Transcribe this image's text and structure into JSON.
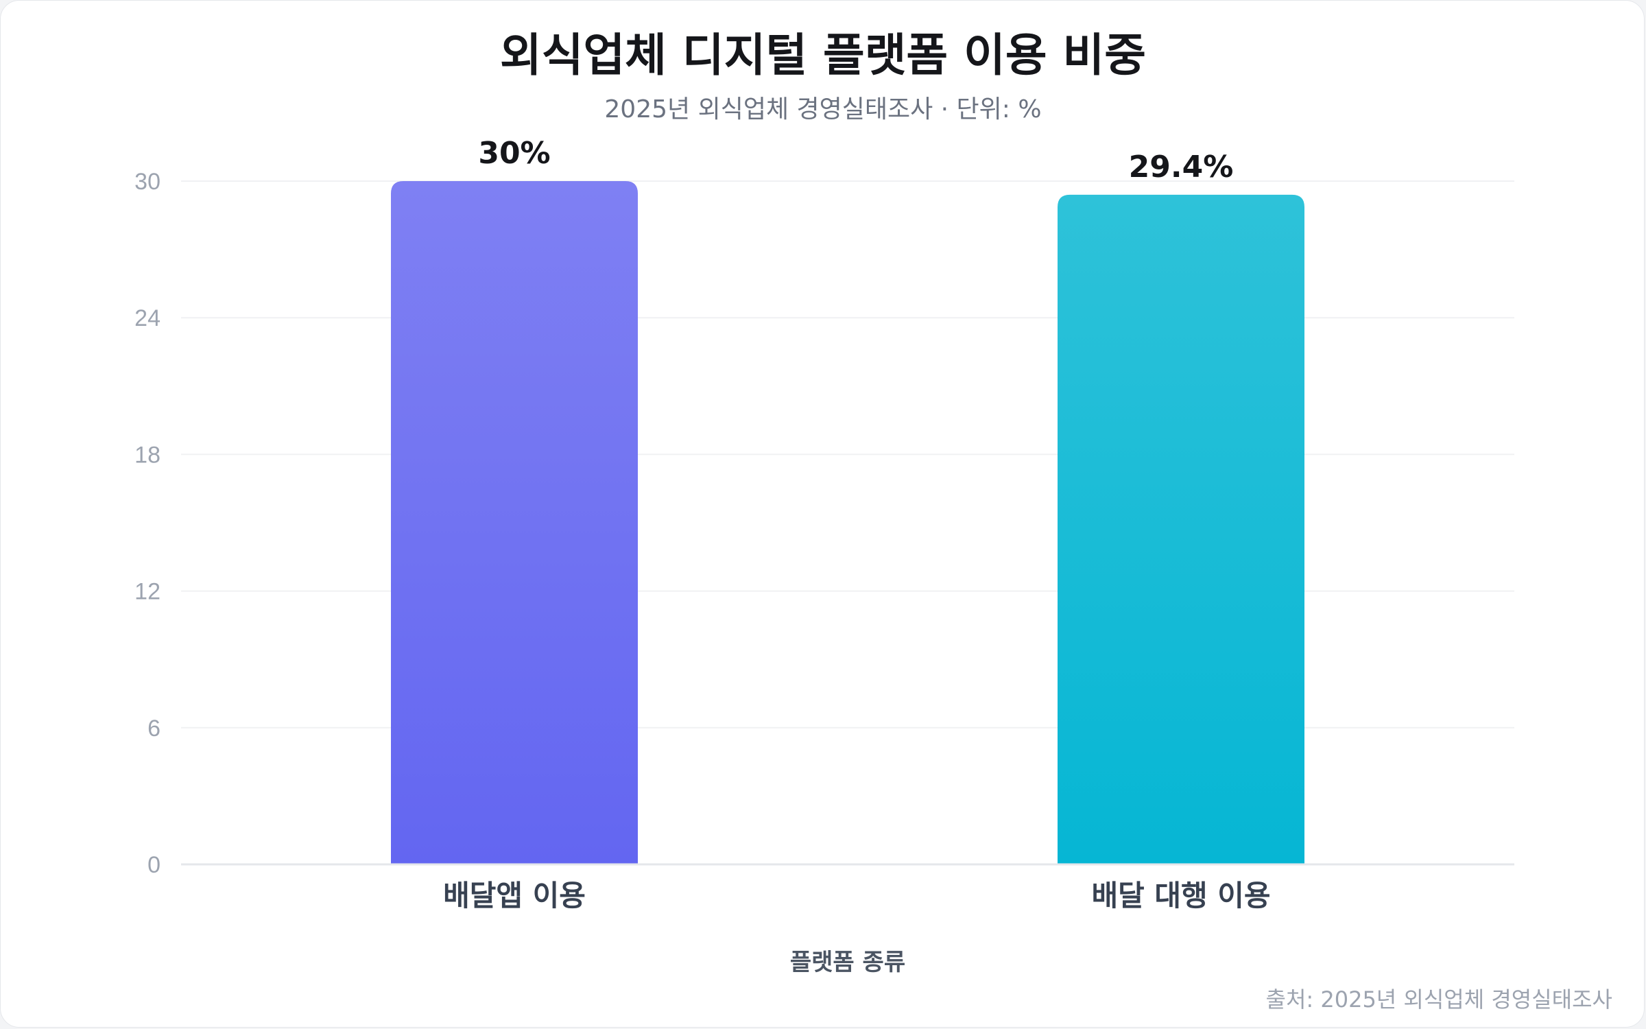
{
  "chart_data": {
    "type": "bar",
    "title": "외식업체 디지털 플랫폼 이용 비중",
    "subtitle": "2025년 외식업체 경영실태조사 · 단위: %",
    "categories": [
      "배달앱 이용",
      "배달 대행 이용"
    ],
    "values": [
      30,
      29.4
    ],
    "value_labels": [
      "30%",
      "29.4%"
    ],
    "xlabel": "플랫폼 종류",
    "ylabel": "",
    "ylim": [
      0,
      30
    ],
    "yticks": [
      "0",
      "6",
      "12",
      "18",
      "24",
      "30"
    ],
    "grid": true,
    "colors": [
      {
        "top": "#7f80f3",
        "bottom": "#6366f1"
      },
      {
        "top": "#2ec2d9",
        "bottom": "#06b6d4"
      }
    ],
    "source": "출처: 2025년 외식업체 경영실태조사"
  }
}
